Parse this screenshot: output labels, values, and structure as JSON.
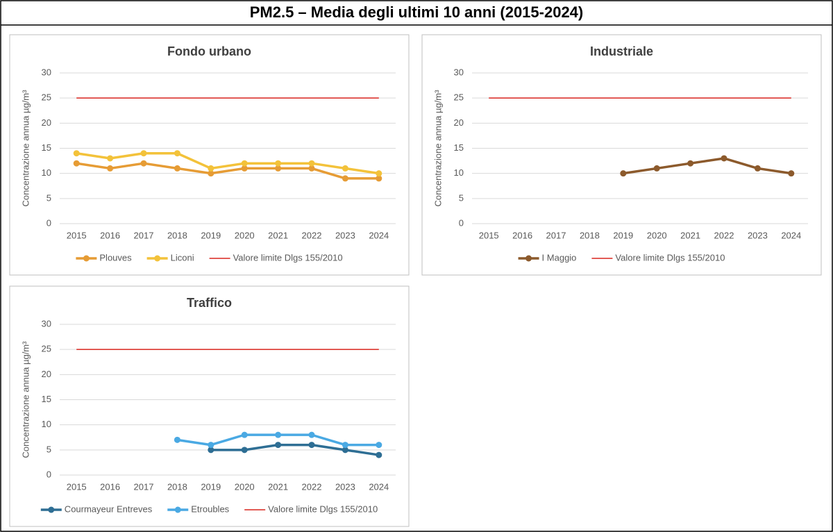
{
  "header": {
    "title": "PM2.5 – Media degli ultimi 10 anni (2015-2024)"
  },
  "chart_data": [
    {
      "type": "line",
      "title": "Fondo urbano",
      "y_label": "Concentrazione annua µg/m³",
      "categories": [
        "2015",
        "2016",
        "2017",
        "2018",
        "2019",
        "2020",
        "2021",
        "2022",
        "2023",
        "2024"
      ],
      "ylim": [
        0,
        30
      ],
      "yticks": [
        0,
        5,
        10,
        15,
        20,
        25,
        30
      ],
      "grid": true,
      "legend": "bottom",
      "series": [
        {
          "name": "Plouves",
          "color": "#e69c35",
          "values": [
            12,
            11,
            12,
            11,
            10,
            11,
            11,
            11,
            9,
            9
          ]
        },
        {
          "name": "Liconi",
          "color": "#f3c23a",
          "values": [
            14,
            13,
            14,
            14,
            11,
            12,
            12,
            12,
            11,
            10
          ]
        },
        {
          "name": "Valore limite Dlgs 155/2010",
          "color": "#d9251d",
          "markers": false,
          "values": [
            25,
            25,
            25,
            25,
            25,
            25,
            25,
            25,
            25,
            25
          ]
        }
      ]
    },
    {
      "type": "line",
      "title": "Industriale",
      "y_label": "Concentrazione annua µg/m³",
      "categories": [
        "2015",
        "2016",
        "2017",
        "2018",
        "2019",
        "2020",
        "2021",
        "2022",
        "2023",
        "2024"
      ],
      "ylim": [
        0,
        30
      ],
      "yticks": [
        0,
        5,
        10,
        15,
        20,
        25,
        30
      ],
      "grid": true,
      "legend": "bottom",
      "series": [
        {
          "name": "I Maggio",
          "color": "#8c5a2c",
          "values": [
            null,
            null,
            null,
            null,
            10,
            11,
            12,
            13,
            11,
            10
          ]
        },
        {
          "name": "Valore limite Dlgs 155/2010",
          "color": "#d9251d",
          "markers": false,
          "values": [
            25,
            25,
            25,
            25,
            25,
            25,
            25,
            25,
            25,
            25
          ]
        }
      ]
    },
    {
      "type": "line",
      "title": "Traffico",
      "y_label": "Concentrazione annua µg/m³",
      "categories": [
        "2015",
        "2016",
        "2017",
        "2018",
        "2019",
        "2020",
        "2021",
        "2022",
        "2023",
        "2024"
      ],
      "ylim": [
        0,
        30
      ],
      "yticks": [
        0,
        5,
        10,
        15,
        20,
        25,
        30
      ],
      "grid": true,
      "legend": "bottom",
      "series": [
        {
          "name": "Courmayeur Entreves",
          "color": "#2e6e94",
          "values": [
            null,
            null,
            null,
            null,
            5,
            5,
            6,
            6,
            5,
            4
          ]
        },
        {
          "name": "Etroubles",
          "color": "#4aa9e3",
          "values": [
            null,
            null,
            null,
            7,
            6,
            8,
            8,
            8,
            6,
            6
          ]
        },
        {
          "name": "Valore limite Dlgs 155/2010",
          "color": "#d9251d",
          "markers": false,
          "values": [
            25,
            25,
            25,
            25,
            25,
            25,
            25,
            25,
            25,
            25
          ]
        }
      ]
    }
  ]
}
